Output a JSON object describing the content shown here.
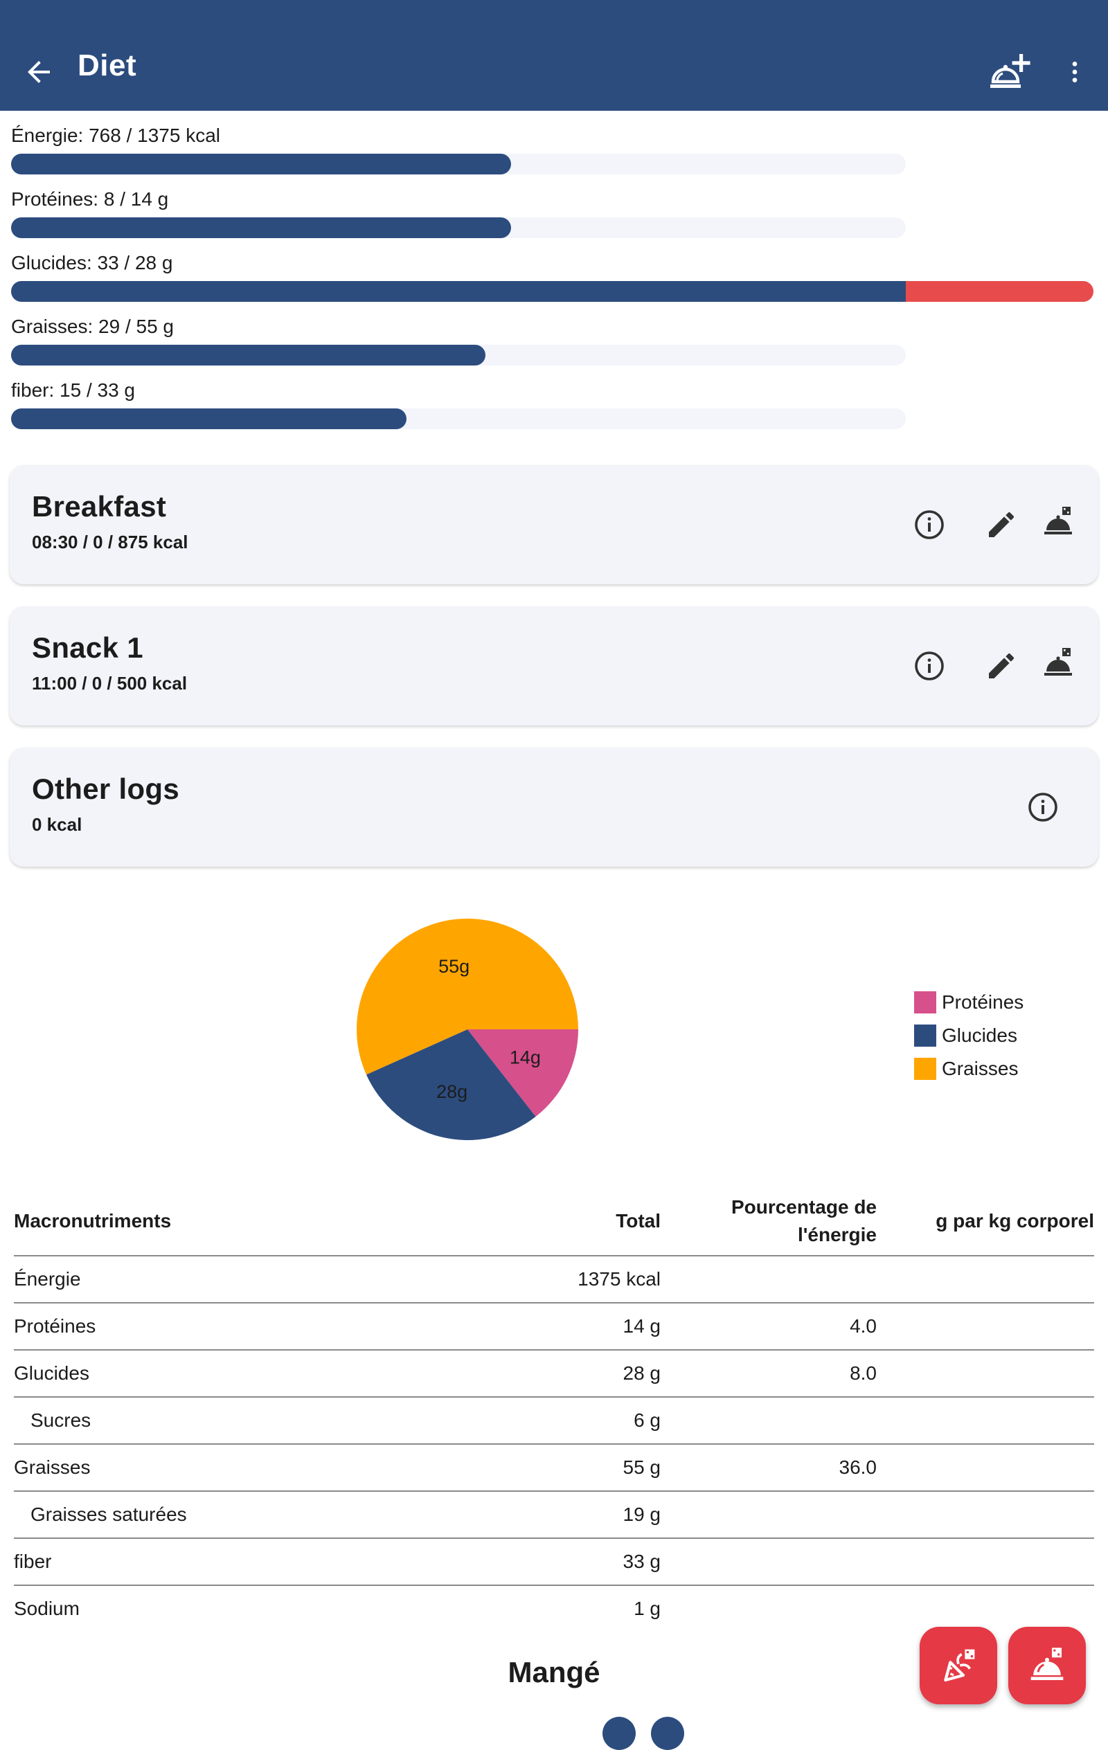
{
  "appbar": {
    "title": "Diet",
    "icons": {
      "back": "arrow-back-icon",
      "add": "add-meal-icon",
      "menu": "more-vert-icon"
    }
  },
  "goals": [
    {
      "label": "Énergie: 768 / 1375 kcal",
      "fraction": 0.559,
      "over": 0
    },
    {
      "label": "Protéines: 8 / 14 g",
      "fraction": 0.559,
      "over": 0
    },
    {
      "label": "Glucides: 33 / 28 g",
      "fraction": 1.0,
      "over": 0.21
    },
    {
      "label": "Graisses: 29 / 55 g",
      "fraction": 0.53,
      "over": 0
    },
    {
      "label": "fiber: 15 / 33 g",
      "fraction": 0.442,
      "over": 0
    }
  ],
  "meals": [
    {
      "name": "Breakfast",
      "sub": "08:30 /  0 / 875 kcal"
    },
    {
      "name": "Snack 1",
      "sub": "11:00 /  0 / 500 kcal"
    },
    {
      "name": "Other logs",
      "sub": " 0 kcal"
    }
  ],
  "chart_data": {
    "type": "pie",
    "title": "",
    "slices": [
      {
        "name": "Protéines",
        "value": 14,
        "label": "14g",
        "color": "#d6508b"
      },
      {
        "name": "Glucides",
        "value": 28,
        "label": "28g",
        "color": "#2c4c7e"
      },
      {
        "name": "Graisses",
        "value": 55,
        "label": "55g",
        "color": "#ffa500"
      }
    ],
    "legend_position": "right"
  },
  "table": {
    "headers": [
      "Macronutriments",
      "Total",
      "Pourcentage de l'énergie",
      "g par kg corporel"
    ],
    "rows": [
      {
        "name": "Énergie",
        "total": "1375 kcal",
        "pct": "",
        "perkg": "",
        "indent": false
      },
      {
        "name": "Protéines",
        "total": "14 g",
        "pct": "4.0",
        "perkg": "",
        "indent": false
      },
      {
        "name": "Glucides",
        "total": "28 g",
        "pct": "8.0",
        "perkg": "",
        "indent": false
      },
      {
        "name": "Sucres",
        "total": "6 g",
        "pct": "",
        "perkg": "",
        "indent": true
      },
      {
        "name": "Graisses",
        "total": "55 g",
        "pct": "36.0",
        "perkg": "",
        "indent": false
      },
      {
        "name": "Graisses saturées",
        "total": "19 g",
        "pct": "",
        "perkg": "",
        "indent": true
      },
      {
        "name": "fiber",
        "total": "33 g",
        "pct": "",
        "perkg": "",
        "indent": false
      },
      {
        "name": "Sodium",
        "total": "1 g",
        "pct": "",
        "perkg": "",
        "indent": false
      }
    ]
  },
  "eaten": {
    "title": "Mangé"
  },
  "fabs": {
    "ingredient": "log-ingredient-icon",
    "meal": "log-meal-icon"
  }
}
